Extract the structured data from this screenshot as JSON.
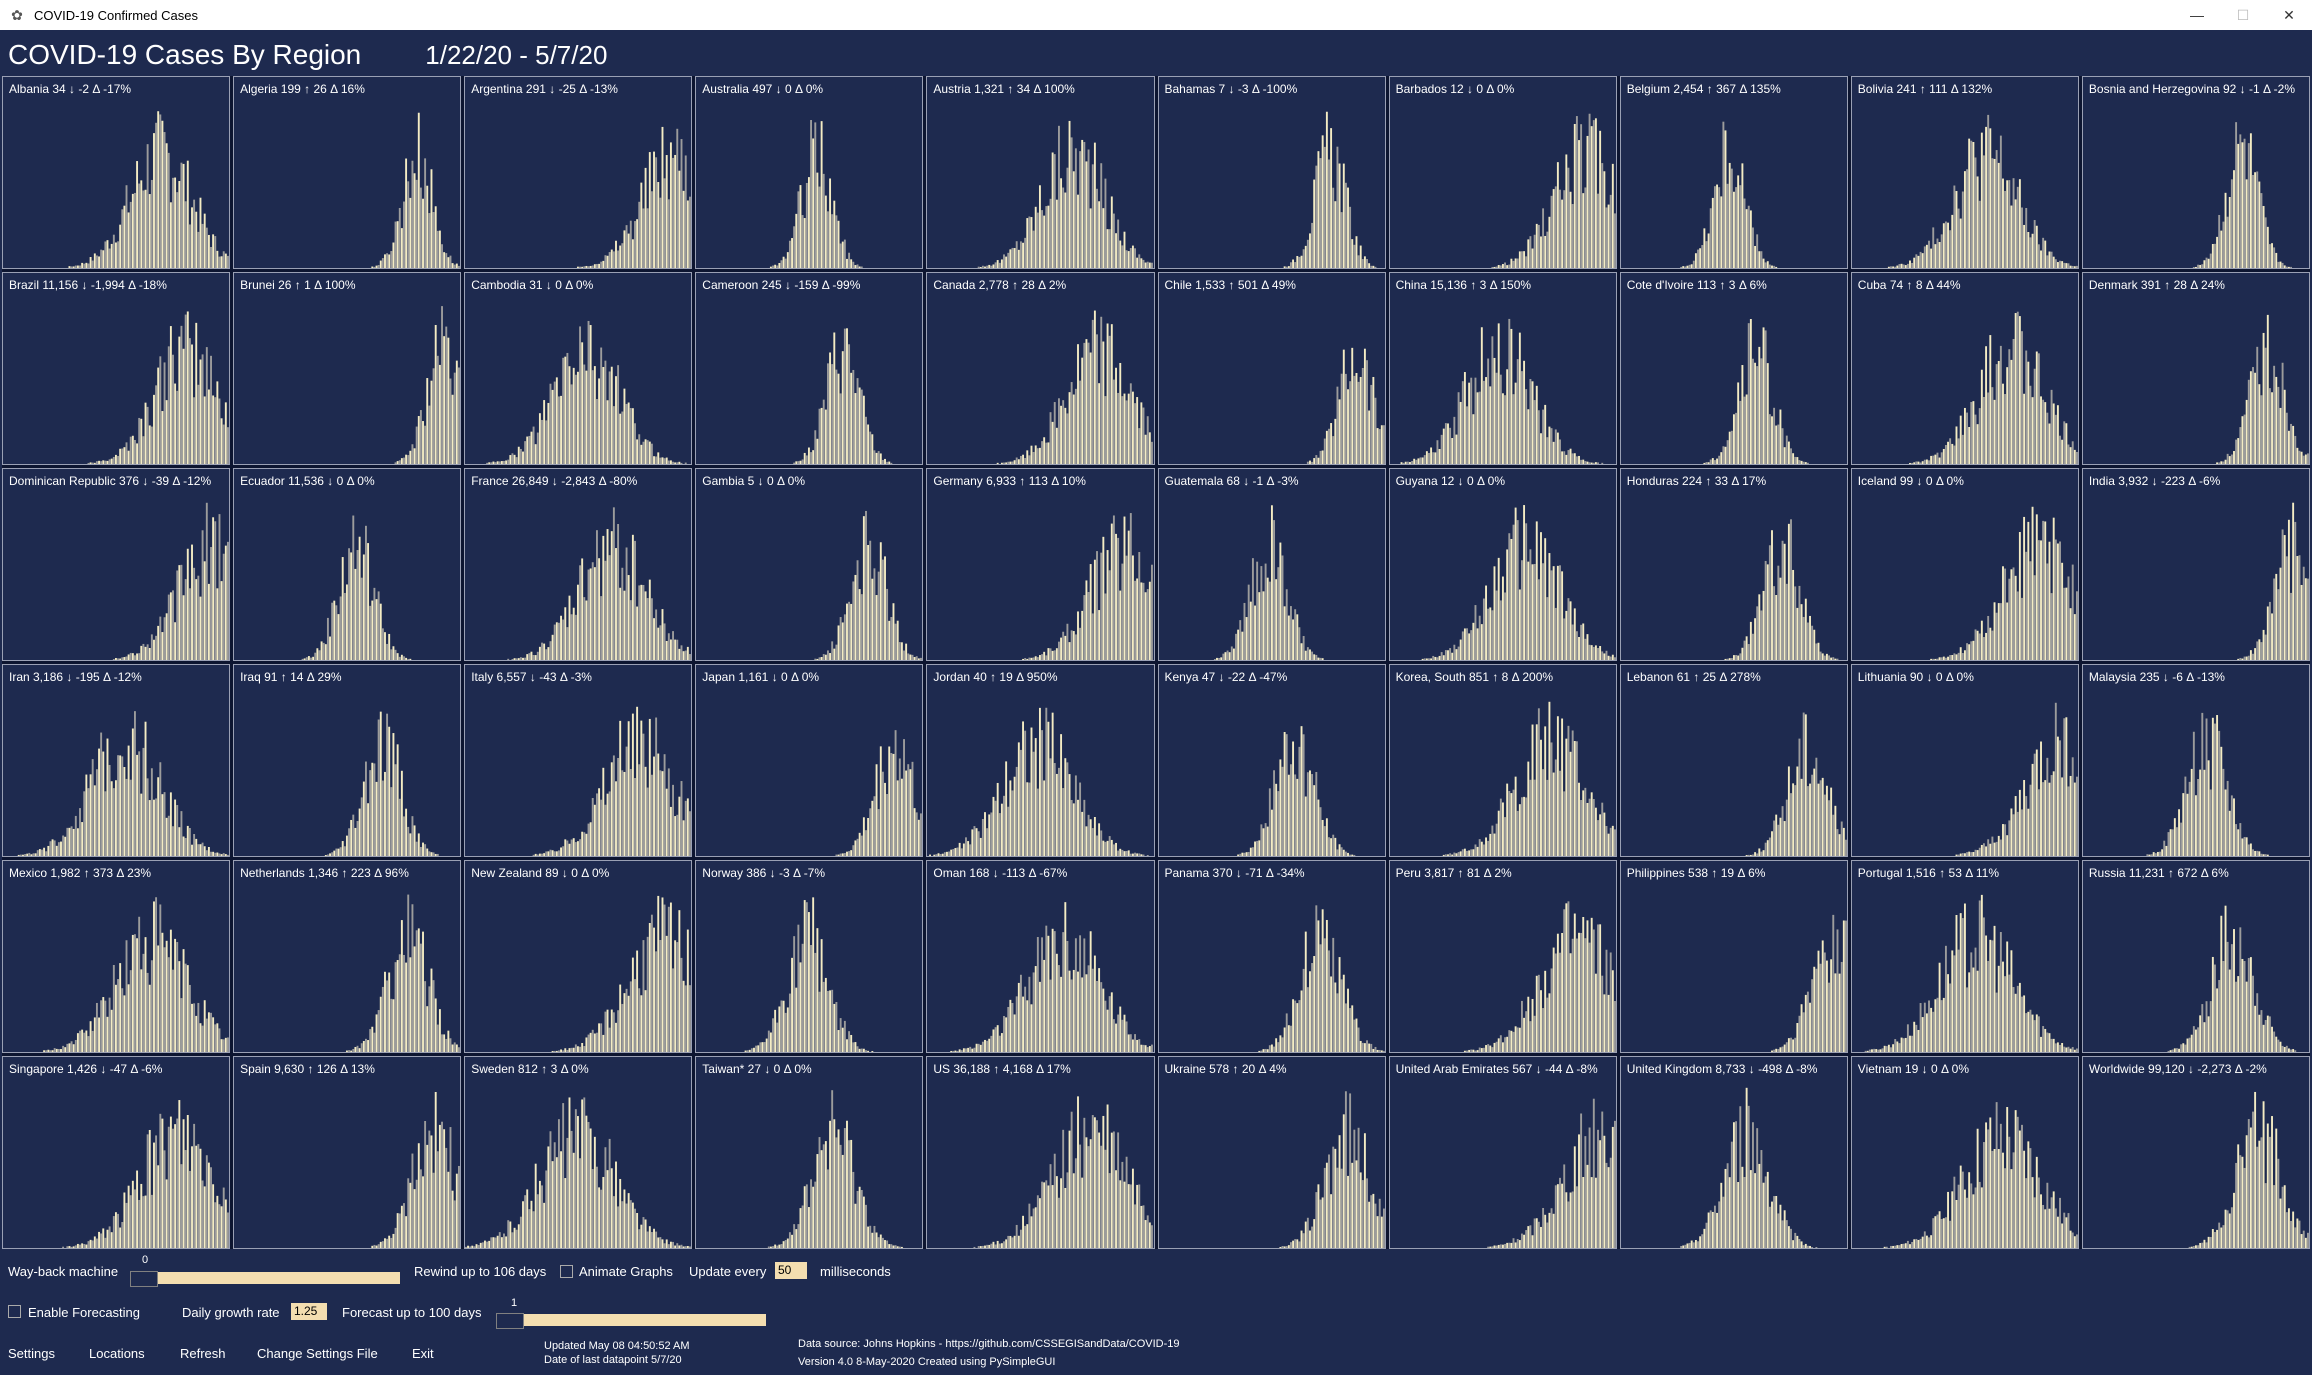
{
  "window": {
    "title": "COVID-19 Confirmed Cases",
    "icon": "gear-icon"
  },
  "header": {
    "title": "COVID-19 Cases By Region",
    "date_range": "1/22/20 - 5/7/20"
  },
  "colors": {
    "background": "#1e2a4f",
    "bar_light": "#f4ecc4",
    "bar_dark": "#9c9c9c",
    "input_bg": "#f4deb0"
  },
  "regions": [
    {
      "label": "Albania     34 ↓ -2 Δ -17%"
    },
    {
      "label": "Algeria     199 ↑ 26 Δ  16%"
    },
    {
      "label": "Argentina     291 ↓ -25 Δ -13%"
    },
    {
      "label": "Australia     497 ↓ 0 Δ   0%"
    },
    {
      "label": "Austria     1,321 ↑ 34 Δ 100%"
    },
    {
      "label": "Bahamas      7 ↓ -3 Δ -100%"
    },
    {
      "label": "Barbados      12 ↓ 0 Δ   0%"
    },
    {
      "label": "Belgium     2,454 ↑ 367 Δ 135%"
    },
    {
      "label": "Bolivia     241 ↑ 111 Δ 132%"
    },
    {
      "label": "Bosnia and Herzegovina     92 ↓ -1 Δ  -2%"
    },
    {
      "label": "Brazil   11,156 ↓ -1,994 Δ -18%"
    },
    {
      "label": "Brunei      26 ↑ 1 Δ 100%"
    },
    {
      "label": "Cambodia      31 ↓ 0 Δ   0%"
    },
    {
      "label": "Cameroon     245 ↓ -159 Δ -99%"
    },
    {
      "label": "Canada     2,778 ↑ 28 Δ   2%"
    },
    {
      "label": "Chile     1,533 ↑ 501 Δ  49%"
    },
    {
      "label": "China     15,136 ↑ 3 Δ 150%"
    },
    {
      "label": "Cote d'Ivoire     113 ↑ 3 Δ   6%"
    },
    {
      "label": "Cuba      74 ↑ 8 Δ  44%"
    },
    {
      "label": "Denmark     391 ↑ 28 Δ  24%"
    },
    {
      "label": "Dominican Republic     376 ↓ -39 Δ  -12%"
    },
    {
      "label": "Ecuador   11,536 ↓ 0 Δ   0%"
    },
    {
      "label": "France   26,849 ↓ -2,843 Δ -80%"
    },
    {
      "label": "Gambia      5 ↓ 0 Δ   0%"
    },
    {
      "label": "Germany   6,933 ↑ 113 Δ  10%"
    },
    {
      "label": "Guatemala     68 ↓ -1 Δ  -3%"
    },
    {
      "label": "Guyana      12 ↓ 0 Δ   0%"
    },
    {
      "label": "Honduras     224 ↑ 33 Δ  17%"
    },
    {
      "label": "Iceland      99 ↓ 0 Δ   0%"
    },
    {
      "label": "India   3,932 ↓ -223 Δ  -6%"
    },
    {
      "label": "Iran   3,186 ↓ -195 Δ -12%"
    },
    {
      "label": "Iraq      91 ↑ 14 Δ  29%"
    },
    {
      "label": "Italy   6,557 ↓ -43 Δ  -3%"
    },
    {
      "label": "Japan   1,161 ↓ 0 Δ   0%"
    },
    {
      "label": "Jordan      40 ↑ 19 Δ 950%"
    },
    {
      "label": "Kenya      47 ↓ -22 Δ -47%"
    },
    {
      "label": "Korea, South     851 ↑ 8 Δ 200%"
    },
    {
      "label": "Lebanon      61 ↑ 25 Δ 278%"
    },
    {
      "label": "Lithuania      90 ↓ 0 Δ   0%"
    },
    {
      "label": "Malaysia     235 ↓ -6 Δ -13%"
    },
    {
      "label": "Mexico   1,982 ↑ 373 Δ  23%"
    },
    {
      "label": "Netherlands   1,346 ↑ 223 Δ  96%"
    },
    {
      "label": "New Zealand      89 ↓ 0 Δ   0%"
    },
    {
      "label": "Norway     386 ↓ -3 Δ  -7%"
    },
    {
      "label": "Oman     168 ↓ -113 Δ -67%"
    },
    {
      "label": "Panama     370 ↓ -71 Δ -34%"
    },
    {
      "label": "Peru   3,817 ↑ 81 Δ   2%"
    },
    {
      "label": "Philippines     538 ↑ 19 Δ   6%"
    },
    {
      "label": "Portugal   1,516 ↑ 53 Δ  11%"
    },
    {
      "label": "Russia   11,231 ↑ 672 Δ   6%"
    },
    {
      "label": "Singapore   1,426 ↓ -47 Δ  -6%"
    },
    {
      "label": "Spain   9,630 ↑ 126 Δ  13%"
    },
    {
      "label": "Sweden     812 ↑ 3 Δ   0%"
    },
    {
      "label": "Taiwan*      27 ↓ 0 Δ   0%"
    },
    {
      "label": "US   36,188 ↑ 4,168 Δ  17%"
    },
    {
      "label": "Ukraine     578 ↑ 20 Δ   4%"
    },
    {
      "label": "United Arab Emirates     567 ↓ -44 Δ  -8%"
    },
    {
      "label": "United Kingdom   8,733 ↓ -498 Δ  -8%"
    },
    {
      "label": "Vietnam      19 ↓ 0 Δ   0%"
    },
    {
      "label": "Worldwide   99,120 ↓ -2,273 Δ  -2%"
    }
  ],
  "controls": {
    "wayback_label": "Way-back machine",
    "wayback_value": "0",
    "rewind_label": "Rewind up to 106 days",
    "animate_label": "Animate Graphs",
    "update_every_label": "Update every",
    "update_every_value": "50",
    "milliseconds_label": "milliseconds",
    "forecast_label": "Enable Forecasting",
    "growth_label": "Daily growth rate",
    "growth_value": "1.25",
    "forecast_days_label": "Forecast up to 100 days",
    "forecast_value": "1",
    "menu": [
      "Settings",
      "Locations",
      "Refresh",
      "Change Settings File",
      "Exit"
    ],
    "updated": "Updated May 08 04:50:52 AM",
    "last_datapoint": "Date of last datapoint 5/7/20",
    "source": "Data source: Johns Hopkins - https://github.com/CSSEGISandData/COVID-19",
    "version": "Version 4.0 8-May-2020 Created using PySimpleGUI"
  }
}
